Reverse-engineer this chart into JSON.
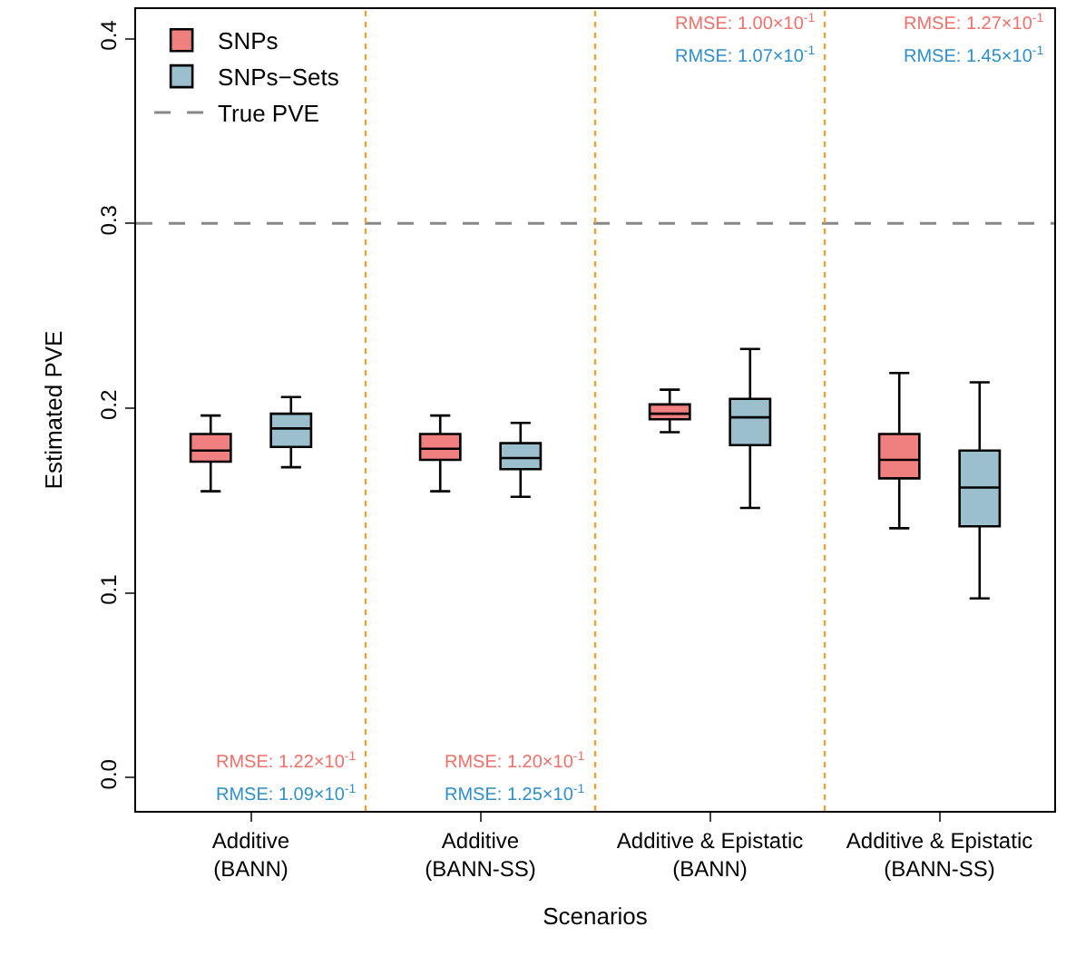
{
  "chart_data": {
    "type": "box",
    "xlabel": "Scenarios",
    "ylabel": "Estimated PVE",
    "categories": [
      "Additive\n(BANN)",
      "Additive\n(BANN-SS)",
      "Additive & Epistatic\n(BANN)",
      "Additive & Epistatic\n(BANN-SS)"
    ],
    "series": [
      {
        "name": "SNPs",
        "color": "#f08080",
        "boxes": [
          {
            "low": 0.155,
            "q1": 0.171,
            "median": 0.177,
            "q3": 0.186,
            "high": 0.196
          },
          {
            "low": 0.155,
            "q1": 0.172,
            "median": 0.178,
            "q3": 0.186,
            "high": 0.196
          },
          {
            "low": 0.187,
            "q1": 0.194,
            "median": 0.197,
            "q3": 0.202,
            "high": 0.21
          },
          {
            "low": 0.135,
            "q1": 0.162,
            "median": 0.172,
            "q3": 0.186,
            "high": 0.219
          }
        ]
      },
      {
        "name": "SNPs−Sets",
        "color": "#9bbfcc",
        "boxes": [
          {
            "low": 0.168,
            "q1": 0.179,
            "median": 0.189,
            "q3": 0.197,
            "high": 0.206
          },
          {
            "low": 0.152,
            "q1": 0.167,
            "median": 0.173,
            "q3": 0.181,
            "high": 0.192
          },
          {
            "low": 0.146,
            "q1": 0.18,
            "median": 0.195,
            "q3": 0.205,
            "high": 0.232
          },
          {
            "low": 0.097,
            "q1": 0.136,
            "median": 0.157,
            "q3": 0.177,
            "high": 0.214
          }
        ]
      }
    ],
    "ylim": [
      -0.018,
      0.416
    ],
    "yticks": [
      {
        "value": 0,
        "label": "0.0"
      },
      0.1,
      0.2,
      0.3,
      0.4
    ],
    "ref_lines": [
      {
        "axis": "y",
        "value": 0.3,
        "label": "True PVE",
        "color": "#888888",
        "line_style": "dashed"
      }
    ],
    "annotations": [
      "RMSE: 1.22×10$^{-1}$",
      "RMSE: 1.09×10$^{-1}$",
      "RMSE: 1.20×10$^{-1}$",
      "RMSE: 1.25×10$^{-1}$",
      "RMSE: 1.00×10$^{-1}$",
      "RMSE: 1.07×10$^{-1}$",
      "RMSE: 1.27×10$^{-1}$",
      "RMSE: 1.45×10$^{-1}$"
    ],
    "legend": "top left"
  }
}
